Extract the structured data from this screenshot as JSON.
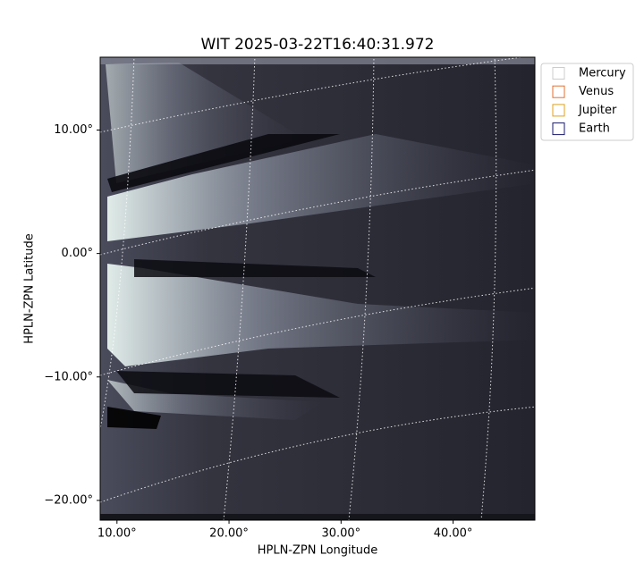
{
  "chart_data": {
    "type": "image",
    "title": "WIT 2025-03-22T16:40:31.972",
    "xlabel": "HPLN-ZPN Longitude",
    "ylabel": "HPLN-ZPN Latitude",
    "xlim": [
      8.5,
      47.3
    ],
    "ylim": [
      -21.6,
      15.9
    ],
    "xticks": [
      {
        "value": 10,
        "label": "10.00°"
      },
      {
        "value": 20,
        "label": "20.00°"
      },
      {
        "value": 30,
        "label": "30.00°"
      },
      {
        "value": 40,
        "label": "40.00°"
      }
    ],
    "yticks": [
      {
        "value": 10,
        "label": "10.00°"
      },
      {
        "value": 0,
        "label": "0.00°"
      },
      {
        "value": -10,
        "label": "−10.00°"
      },
      {
        "value": -20,
        "label": "−20.00°"
      }
    ],
    "legend_position": "upper right outside",
    "legend_entries": [
      {
        "name": "Mercury",
        "color": "#cccccc"
      },
      {
        "name": "Venus",
        "color": "#e07030"
      },
      {
        "name": "Jupiter",
        "color": "#e0a020"
      },
      {
        "name": "Earth",
        "color": "#1a1a6e"
      }
    ]
  }
}
